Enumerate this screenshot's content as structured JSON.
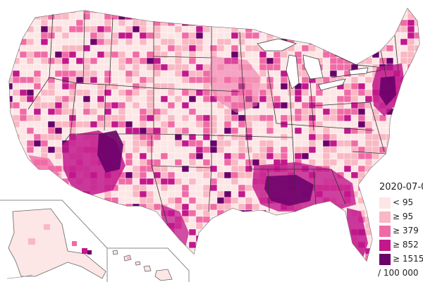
{
  "map": {
    "date_label": "2020-07-0",
    "unit_label": "/ 100 000",
    "legend": [
      {
        "label": "< 95",
        "color": "#fde6e6"
      },
      {
        "label": "≥ 95",
        "color": "#f9b8c4"
      },
      {
        "label": "≥ 379",
        "color": "#f06ba6"
      },
      {
        "label": "≥ 852",
        "color": "#c2188c"
      },
      {
        "label": "≥ 1515",
        "color": "#6a006a"
      }
    ],
    "border_color": "#333333",
    "land_base_color": "#fbd3d8"
  }
}
